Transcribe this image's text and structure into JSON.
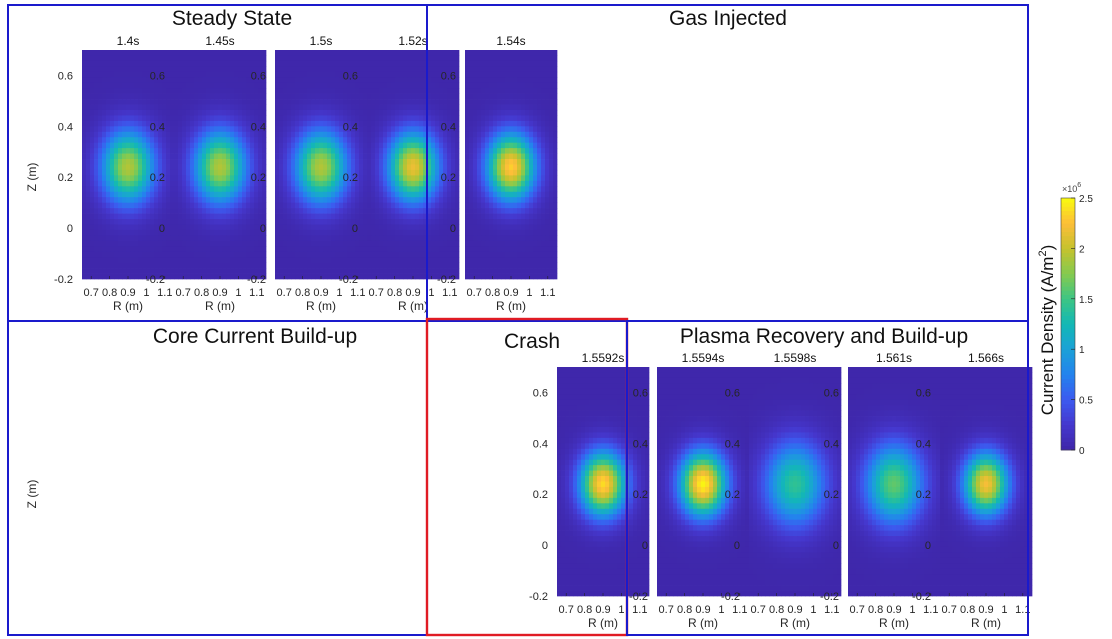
{
  "chart_data": {
    "type": "heatmap",
    "colormap": "parula",
    "grid": "off",
    "xlabel": "R (m)",
    "ylabel": "Z (m)",
    "xlim": [
      0.65,
      1.15
    ],
    "ylim": [
      -0.2,
      0.7
    ],
    "xticks": [
      "0.7",
      "0.8",
      "0.9",
      "1",
      "1.1"
    ],
    "yticks": [
      "-0.2",
      "0",
      "0.2",
      "0.4",
      "0.6"
    ],
    "groups": [
      {
        "title": "Steady State",
        "box_color": "#1a1acc"
      },
      {
        "title": "Gas Injected",
        "box_color": "#1a1acc"
      },
      {
        "title": "Core Current Build-up",
        "box_color": "#1a1acc"
      },
      {
        "title": "Crash",
        "box_color": "#e01b24"
      },
      {
        "title": "Plasma Recovery and Build-up",
        "box_color": "#1a1acc"
      }
    ],
    "panels": [
      {
        "time": "1.4s",
        "peak": 1.9,
        "center": [
          0.9,
          0.24
        ],
        "width": 0.1
      },
      {
        "time": "1.45s",
        "peak": 1.9,
        "center": [
          0.9,
          0.24
        ],
        "width": 0.1
      },
      {
        "time": "1.5s",
        "peak": 1.9,
        "center": [
          0.9,
          0.24
        ],
        "width": 0.1
      },
      {
        "time": "1.52s",
        "peak": 2.15,
        "center": [
          0.9,
          0.24
        ],
        "width": 0.095
      },
      {
        "time": "1.54s",
        "peak": 2.3,
        "center": [
          0.9,
          0.24
        ],
        "width": 0.092
      },
      {
        "time": "1.5592s",
        "peak": 2.35,
        "center": [
          0.9,
          0.24
        ],
        "width": 0.088
      },
      {
        "time": "1.5594s",
        "peak": 2.45,
        "center": [
          0.9,
          0.24
        ],
        "width": 0.088
      },
      {
        "time": "1.5598s",
        "peak": 1.4,
        "center": [
          0.9,
          0.24
        ],
        "width": 0.115
      },
      {
        "time": "1.561s",
        "peak": 1.6,
        "center": [
          0.9,
          0.24
        ],
        "width": 0.11
      },
      {
        "time": "1.566s",
        "peak": 2.2,
        "center": [
          0.9,
          0.24
        ],
        "width": 0.085
      }
    ],
    "colorbar": {
      "label": "Current Density (A/m²)",
      "label_main": "Current Density (A/m",
      "label_sup": "2",
      "label_end": ")",
      "exponent_base": "×10",
      "exponent": "6",
      "range": [
        0,
        2.5
      ],
      "ticks": [
        "0",
        "0.5",
        "1",
        "1.5",
        "2",
        "2.5"
      ]
    }
  }
}
